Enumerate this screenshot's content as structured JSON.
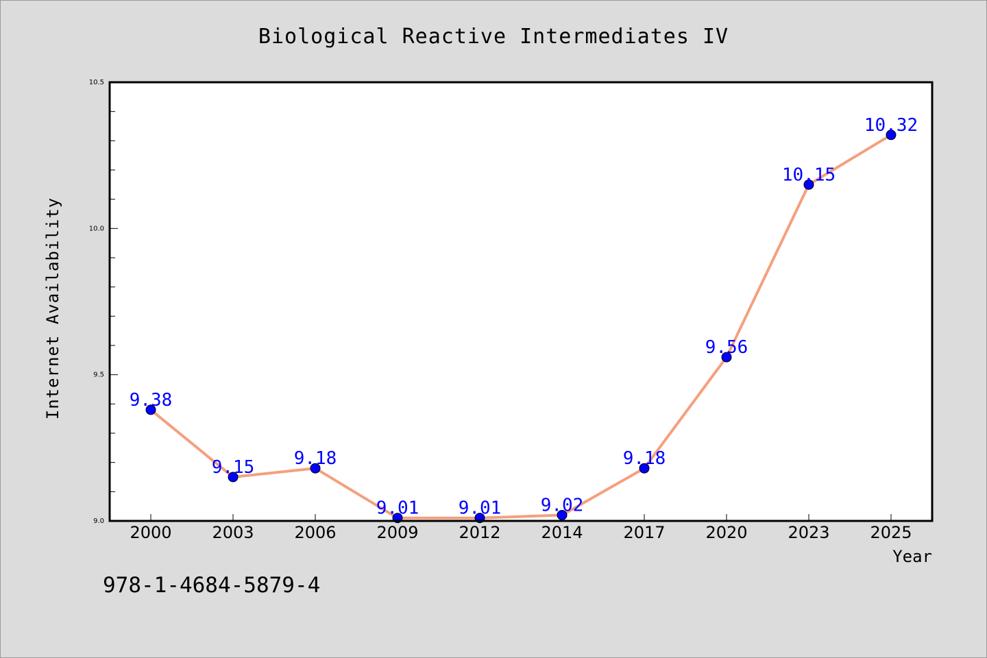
{
  "chart_data": {
    "type": "line",
    "title": "Biological Reactive Intermediates IV",
    "xlabel": "Year",
    "ylabel": "Internet Availability",
    "categories": [
      "2000",
      "2003",
      "2006",
      "2009",
      "2012",
      "2014",
      "2017",
      "2020",
      "2023",
      "2025"
    ],
    "values": [
      9.38,
      9.15,
      9.18,
      9.01,
      9.01,
      9.02,
      9.18,
      9.56,
      10.15,
      10.32
    ],
    "data_labels": [
      "9.38",
      "9.15",
      "9.18",
      "9.01",
      "9.01",
      "9.02",
      "9.18",
      "9.56",
      "10.15",
      "10.32"
    ],
    "ylim": [
      9.0,
      10.5
    ],
    "ytick_labels": [
      "9.0",
      "9.5",
      "10.0",
      "10.5"
    ],
    "grid": false,
    "line_color": "#f4a07e",
    "marker_color": "#0000ff",
    "label_color": "#0000ff"
  },
  "footer": {
    "isbn": "978-1-4684-5879-4"
  }
}
